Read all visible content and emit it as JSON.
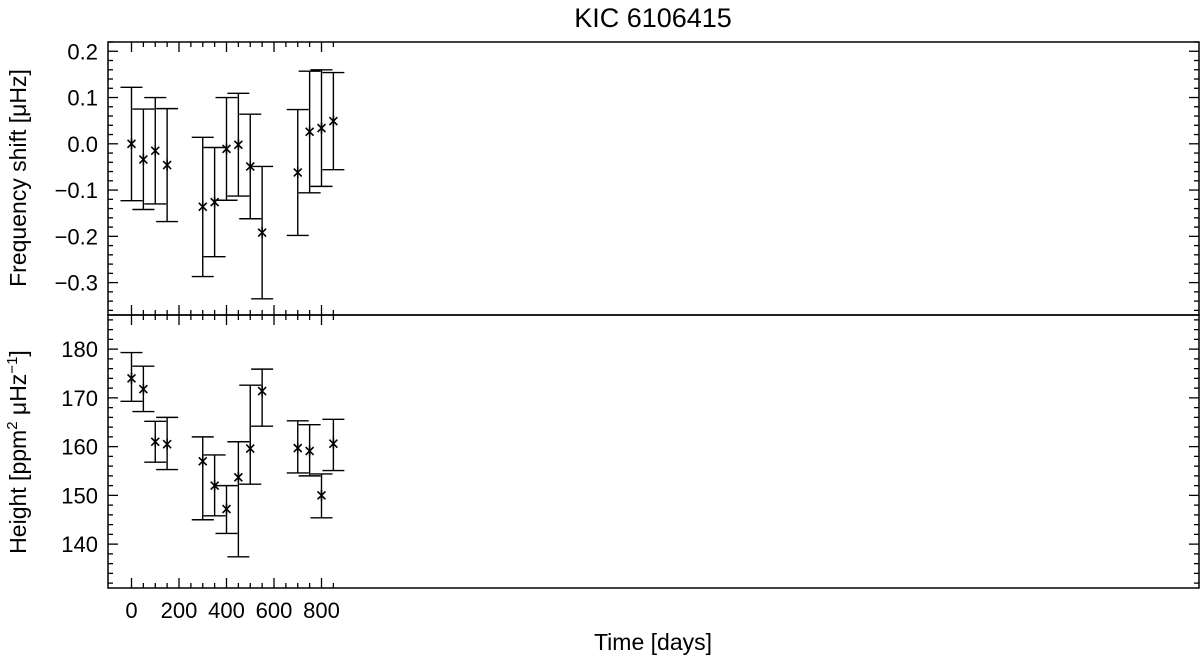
{
  "chart_data": [
    {
      "type": "scatter",
      "title": "KIC 6106415",
      "xlabel": "",
      "ylabel": "Frequency shift [μHz]",
      "xlim": [
        -20,
        900
      ],
      "ylim": [
        -0.37,
        0.22
      ],
      "xticks": [
        "0",
        "200",
        "400",
        "600",
        "800"
      ],
      "yticks": [
        "0.2",
        "0.1",
        "0.0",
        "−0.1",
        "−0.2",
        "−0.3"
      ],
      "ytick_values": [
        0.2,
        0.1,
        0.0,
        -0.1,
        -0.2,
        -0.3
      ],
      "show_xtick_labels": false,
      "marker": "asterisk",
      "error_bars": true,
      "points": [
        {
          "x": 0,
          "y": 0.0,
          "low": -0.123,
          "high": 0.122
        },
        {
          "x": 50,
          "y": -0.034,
          "low": -0.142,
          "high": 0.075
        },
        {
          "x": 100,
          "y": -0.015,
          "low": -0.13,
          "high": 0.1
        },
        {
          "x": 150,
          "y": -0.046,
          "low": -0.168,
          "high": 0.076
        },
        {
          "x": 300,
          "y": -0.136,
          "low": -0.287,
          "high": 0.014
        },
        {
          "x": 350,
          "y": -0.126,
          "low": -0.244,
          "high": -0.008
        },
        {
          "x": 400,
          "y": -0.011,
          "low": -0.122,
          "high": 0.1
        },
        {
          "x": 450,
          "y": -0.002,
          "low": -0.113,
          "high": 0.109
        },
        {
          "x": 500,
          "y": -0.049,
          "low": -0.162,
          "high": 0.064
        },
        {
          "x": 550,
          "y": -0.192,
          "low": -0.335,
          "high": -0.049
        },
        {
          "x": 700,
          "y": -0.062,
          "low": -0.198,
          "high": 0.074
        },
        {
          "x": 750,
          "y": 0.026,
          "low": -0.106,
          "high": 0.157
        },
        {
          "x": 800,
          "y": 0.034,
          "low": -0.092,
          "high": 0.16
        },
        {
          "x": 850,
          "y": 0.049,
          "low": -0.056,
          "high": 0.154
        }
      ]
    },
    {
      "type": "scatter",
      "title": "",
      "xlabel": "Time [days]",
      "ylabel": {
        "pre": "Height [ppm",
        "sup1": "2",
        "mid": " μHz",
        "sup2": "−1",
        "post": "]"
      },
      "xlim": [
        -20,
        900
      ],
      "ylim": [
        131,
        187
      ],
      "xticks": [
        "0",
        "200",
        "400",
        "600",
        "800"
      ],
      "yticks": [
        "180",
        "170",
        "160",
        "150",
        "140"
      ],
      "ytick_values": [
        180,
        170,
        160,
        150,
        140
      ],
      "show_xtick_labels": true,
      "marker": "asterisk",
      "error_bars": true,
      "points": [
        {
          "x": 0,
          "y": 174.0,
          "low": 169.3,
          "high": 179.3
        },
        {
          "x": 50,
          "y": 171.8,
          "low": 167.2,
          "high": 176.5
        },
        {
          "x": 100,
          "y": 161.0,
          "low": 156.8,
          "high": 165.2
        },
        {
          "x": 150,
          "y": 160.5,
          "low": 155.3,
          "high": 166.0
        },
        {
          "x": 300,
          "y": 157.0,
          "low": 145.0,
          "high": 162.0
        },
        {
          "x": 350,
          "y": 152.0,
          "low": 145.8,
          "high": 158.3
        },
        {
          "x": 400,
          "y": 147.2,
          "low": 142.2,
          "high": 152.0
        },
        {
          "x": 450,
          "y": 153.7,
          "low": 137.4,
          "high": 161.0
        },
        {
          "x": 500,
          "y": 159.6,
          "low": 152.3,
          "high": 172.6
        },
        {
          "x": 550,
          "y": 171.4,
          "low": 164.2,
          "high": 175.9
        },
        {
          "x": 700,
          "y": 159.7,
          "low": 154.6,
          "high": 165.3
        },
        {
          "x": 750,
          "y": 159.1,
          "low": 154.0,
          "high": 164.5
        },
        {
          "x": 800,
          "y": 150.0,
          "low": 145.4,
          "high": 154.4
        },
        {
          "x": 850,
          "y": 160.6,
          "low": 155.1,
          "high": 165.6
        }
      ]
    }
  ]
}
